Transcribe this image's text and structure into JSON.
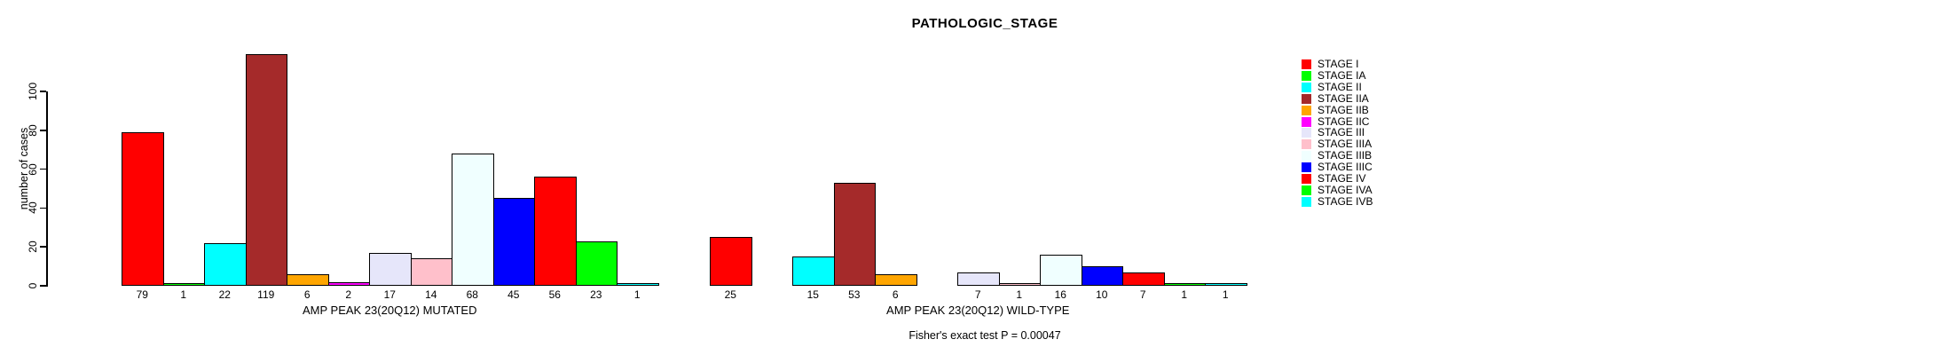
{
  "chart_data": {
    "type": "bar",
    "title": "PATHOLOGIC_STAGE",
    "ylabel": "number of cases",
    "xlabel": "",
    "ylim": [
      0,
      100
    ],
    "yticks": [
      0,
      20,
      40,
      60,
      80,
      100
    ],
    "grid": false,
    "legend_position": "right",
    "categories": [
      "STAGE I",
      "STAGE IA",
      "STAGE II",
      "STAGE IIA",
      "STAGE IIB",
      "STAGE IIC",
      "STAGE III",
      "STAGE IIIA",
      "STAGE IIIB",
      "STAGE IIIC",
      "STAGE IV",
      "STAGE IVA",
      "STAGE IVB"
    ],
    "colors": [
      "#FF0000",
      "#00FF00",
      "#00FFFF",
      "#A52A2A",
      "#FFA500",
      "#FF00FF",
      "#E6E6FA",
      "#FFC0CB",
      "#F0FFFF",
      "#0000FF",
      "#FF0000",
      "#00FF00",
      "#00FFFF"
    ],
    "series": [
      {
        "name": "AMP PEAK 23(20Q12) MUTATED",
        "values": [
          79,
          1,
          22,
          119,
          6,
          2,
          17,
          14,
          68,
          45,
          56,
          23,
          1
        ]
      },
      {
        "name": "AMP PEAK 23(20Q12) WILD-TYPE",
        "values": [
          25,
          0,
          15,
          53,
          6,
          0,
          7,
          1,
          16,
          10,
          7,
          1,
          1
        ]
      }
    ],
    "bar_value_labels_shown": true,
    "annotation": "Fisher's exact test P = 0.00047"
  }
}
